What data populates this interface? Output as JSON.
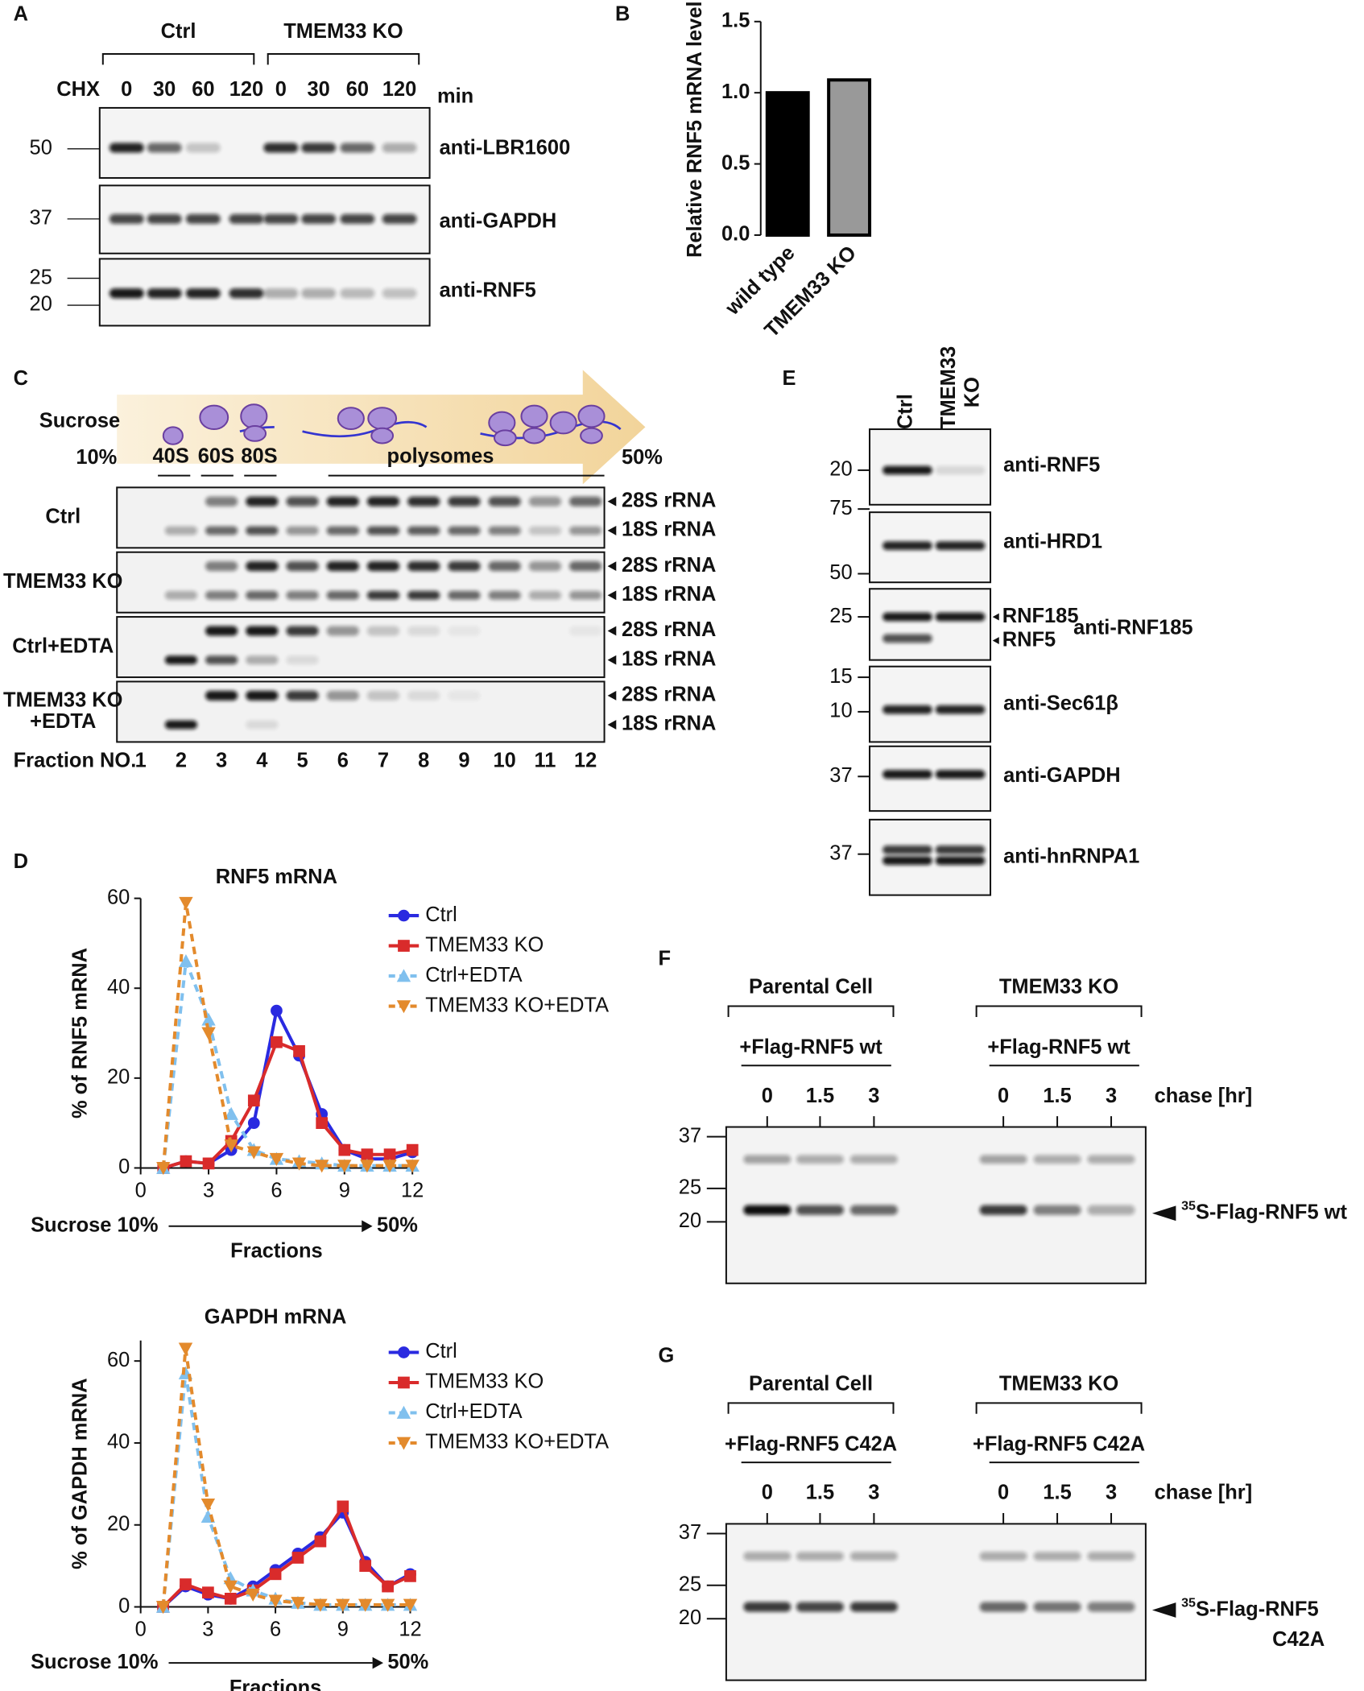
{
  "panel_labels": [
    "A",
    "B",
    "C",
    "D",
    "E",
    "F",
    "G"
  ],
  "panel_a": {
    "groups": [
      "Ctrl",
      "TMEM33 KO"
    ],
    "treatment": "CHX",
    "times": [
      "0",
      "30",
      "60",
      "120"
    ],
    "time_unit": "min",
    "blots": [
      {
        "antibody": "anti-LBR1600",
        "markers": [
          50
        ]
      },
      {
        "antibody": "anti-GAPDH",
        "markers": [
          37
        ]
      },
      {
        "antibody": "anti-RNF5",
        "markers": [
          25,
          20
        ]
      }
    ]
  },
  "chart_data": [
    {
      "type": "bar",
      "ylabel": "Relative RNF5  mRNA level",
      "categories": [
        "wild type",
        "TMEM33 KO"
      ],
      "values": [
        1.0,
        1.09
      ],
      "colors": [
        "#000000",
        "#999999"
      ],
      "ylim": [
        0,
        1.5
      ],
      "yticks": [
        {
          "value": 0,
          "label": "0.0"
        },
        {
          "value": 0.5,
          "label": "0.5"
        },
        {
          "value": 1,
          "label": "1.0"
        },
        {
          "value": 1.5,
          "label": "1.5"
        }
      ]
    },
    {
      "type": "line",
      "title": "RNF5 mRNA",
      "ylabel": "% of  RNF5 mRNA",
      "xlabel": "Fractions",
      "annotations": [
        "Sucrose 10%",
        "50%"
      ],
      "legend": "upper right",
      "x": [
        1,
        2,
        3,
        4,
        5,
        6,
        7,
        8,
        9,
        10,
        11,
        12
      ],
      "xlim": [
        0,
        12
      ],
      "xticks": [
        0,
        3,
        6,
        9,
        12
      ],
      "ylim": [
        0,
        60
      ],
      "yticks": [
        0,
        20,
        40,
        60
      ],
      "series": [
        {
          "name": "Ctrl",
          "color": "#2a2ae0",
          "marker": "circle",
          "dashed": false,
          "values": [
            0,
            1.5,
            1,
            4,
            10,
            35,
            25,
            12,
            4,
            2,
            2,
            3.5
          ]
        },
        {
          "name": "TMEM33 KO",
          "color": "#d92b2b",
          "marker": "square",
          "dashed": false,
          "values": [
            0,
            1.5,
            1,
            6,
            15,
            28,
            26,
            10,
            4,
            3,
            3,
            4
          ]
        },
        {
          "name": "Ctrl+EDTA",
          "color": "#80c0ee",
          "marker": "triangle-up",
          "dashed": true,
          "values": [
            0,
            46,
            33,
            12,
            4,
            2,
            1.5,
            1,
            0.5,
            0.5,
            0.5,
            0.5
          ]
        },
        {
          "name": "TMEM33 KO+EDTA",
          "color": "#e38a2c",
          "marker": "triangle-down",
          "dashed": true,
          "values": [
            0,
            59,
            30,
            5,
            3.5,
            2,
            1,
            0.5,
            0.5,
            0.5,
            0.5,
            0.5
          ]
        }
      ]
    },
    {
      "type": "line",
      "title": "GAPDH mRNA",
      "ylabel": "% of  GAPDH mRNA",
      "xlabel": "Fractions",
      "annotations": [
        "Sucrose 10%",
        "50%"
      ],
      "legend": "upper right",
      "x": [
        1,
        2,
        3,
        4,
        5,
        6,
        7,
        8,
        9,
        10,
        11,
        12
      ],
      "xlim": [
        0,
        12
      ],
      "xticks": [
        0,
        3,
        6,
        9,
        12
      ],
      "ylim": [
        0,
        65
      ],
      "yticks": [
        0,
        20,
        40,
        60
      ],
      "series": [
        {
          "name": "Ctrl",
          "color": "#2a2ae0",
          "marker": "circle",
          "dashed": false,
          "values": [
            0,
            5,
            3,
            2,
            5,
            9,
            13,
            17,
            23,
            11,
            5,
            8
          ]
        },
        {
          "name": "TMEM33 KO",
          "color": "#d92b2b",
          "marker": "square",
          "dashed": false,
          "values": [
            0,
            5.5,
            3.5,
            2,
            4,
            8,
            12,
            16,
            24.5,
            10,
            5,
            7.5
          ]
        },
        {
          "name": "Ctrl+EDTA",
          "color": "#80c0ee",
          "marker": "triangle-up",
          "dashed": true,
          "values": [
            0,
            57,
            22,
            7,
            4,
            2,
            1,
            0.5,
            0.5,
            0.5,
            0.5,
            0.5
          ]
        },
        {
          "name": "TMEM33 KO+EDTA",
          "color": "#e38a2c",
          "marker": "triangle-down",
          "dashed": true,
          "values": [
            0,
            63,
            25,
            5,
            3,
            1.5,
            1,
            0.5,
            0.5,
            0.5,
            0.5,
            0.5
          ]
        }
      ]
    }
  ],
  "panel_c": {
    "gradient": [
      "Sucrose",
      "10%",
      "50%"
    ],
    "particles": [
      "40S",
      "60S",
      "80S",
      "polysomes"
    ],
    "rows": [
      [
        "Ctrl"
      ],
      [
        "TMEM33 KO"
      ],
      [
        "Ctrl+EDTA"
      ],
      [
        "TMEM33 KO",
        "+EDTA"
      ]
    ],
    "bands": [
      "28S rRNA",
      "18S rRNA"
    ],
    "fraction_label": "Fraction NO.",
    "fractions": [
      1,
      2,
      3,
      4,
      5,
      6,
      7,
      8,
      9,
      10,
      11,
      12
    ]
  },
  "panel_e": {
    "lanes": [
      [
        "Ctrl"
      ],
      [
        "TMEM33",
        "KO"
      ]
    ],
    "blots": [
      {
        "antibody": "anti-RNF5",
        "markers": [
          20
        ]
      },
      {
        "antibody": "anti-HRD1",
        "markers": [
          75,
          50
        ]
      },
      {
        "antibody": "anti-RNF185",
        "markers": [
          25
        ],
        "band_labels": [
          "RNF185",
          "RNF5"
        ]
      },
      {
        "antibody": "anti-Sec61β",
        "markers": [
          15,
          10
        ]
      },
      {
        "antibody": "anti-GAPDH",
        "markers": [
          37
        ]
      },
      {
        "antibody": "anti-hnRNPA1",
        "markers": [
          37
        ]
      }
    ]
  },
  "panel_f": {
    "groups": [
      "Parental Cell",
      "TMEM33 KO"
    ],
    "construct": "+Flag-RNF5 wt",
    "times": [
      "0",
      "1.5",
      "3"
    ],
    "time_label": "chase [hr]",
    "markers": [
      37,
      25,
      20
    ],
    "band_label": {
      "sup": "35",
      "text": [
        "S-Flag-RNF5 wt"
      ]
    }
  },
  "panel_g": {
    "groups": [
      "Parental Cell",
      "TMEM33 KO"
    ],
    "construct": "+Flag-RNF5 C42A",
    "times": [
      "0",
      "1.5",
      "3"
    ],
    "time_label": "chase [hr]",
    "markers": [
      37,
      25,
      20
    ],
    "band_label": {
      "sup": "35",
      "text": [
        "S-Flag-RNF5",
        "C42A"
      ]
    }
  }
}
